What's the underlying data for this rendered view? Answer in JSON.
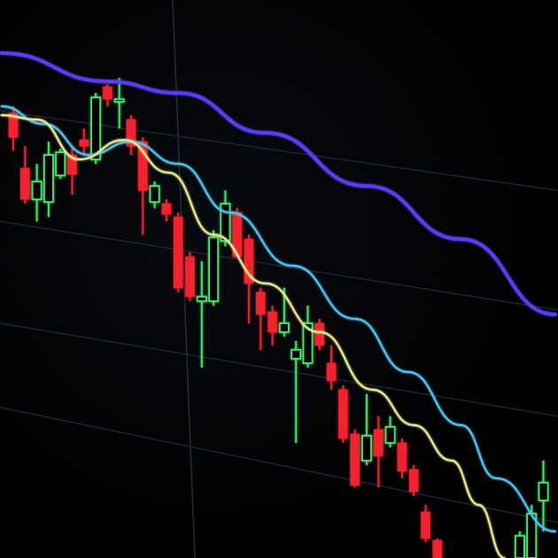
{
  "chart_data": {
    "type": "candlestick",
    "title": "",
    "xlabel": "",
    "ylabel": "",
    "grid": true,
    "xlim": [
      -1,
      46
    ],
    "ylim": [
      0,
      630
    ],
    "colors": {
      "up": "#3ee86a",
      "down": "#f2202e",
      "ma_slow": "#5a3cf0",
      "ma_mid": "#4fc3f0",
      "ma_fast": "#e8e890",
      "grid": "#1c2a36",
      "background": "#000000"
    },
    "candles": [
      {
        "t": 0,
        "open": 502,
        "high": 510,
        "low": 460,
        "close": 475
      },
      {
        "t": 1,
        "open": 440,
        "high": 465,
        "low": 400,
        "close": 405
      },
      {
        "t": 2,
        "open": 405,
        "high": 445,
        "low": 380,
        "close": 425
      },
      {
        "t": 3,
        "open": 402,
        "high": 470,
        "low": 385,
        "close": 455
      },
      {
        "t": 4,
        "open": 432,
        "high": 462,
        "low": 428,
        "close": 458
      },
      {
        "t": 5,
        "open": 455,
        "high": 465,
        "low": 410,
        "close": 433
      },
      {
        "t": 6,
        "open": 472,
        "high": 485,
        "low": 455,
        "close": 465
      },
      {
        "t": 7,
        "open": 450,
        "high": 525,
        "low": 445,
        "close": 520
      },
      {
        "t": 8,
        "open": 532,
        "high": 535,
        "low": 510,
        "close": 518
      },
      {
        "t": 9,
        "open": 515,
        "high": 542,
        "low": 485,
        "close": 518
      },
      {
        "t": 10,
        "open": 495,
        "high": 500,
        "low": 455,
        "close": 465
      },
      {
        "t": 11,
        "open": 470,
        "high": 475,
        "low": 365,
        "close": 415
      },
      {
        "t": 12,
        "open": 402,
        "high": 425,
        "low": 395,
        "close": 420
      },
      {
        "t": 13,
        "open": 400,
        "high": 405,
        "low": 380,
        "close": 388
      },
      {
        "t": 14,
        "open": 385,
        "high": 390,
        "low": 300,
        "close": 305
      },
      {
        "t": 15,
        "open": 340,
        "high": 345,
        "low": 290,
        "close": 295
      },
      {
        "t": 16,
        "open": 290,
        "high": 335,
        "low": 215,
        "close": 295
      },
      {
        "t": 17,
        "open": 290,
        "high": 370,
        "low": 285,
        "close": 362
      },
      {
        "t": 18,
        "open": 358,
        "high": 415,
        "low": 352,
        "close": 400
      },
      {
        "t": 19,
        "open": 390,
        "high": 395,
        "low": 340,
        "close": 340
      },
      {
        "t": 20,
        "open": 360,
        "high": 365,
        "low": 265,
        "close": 310
      },
      {
        "t": 21,
        "open": 300,
        "high": 305,
        "low": 235,
        "close": 275
      },
      {
        "t": 22,
        "open": 278,
        "high": 285,
        "low": 240,
        "close": 255
      },
      {
        "t": 23,
        "open": 255,
        "high": 305,
        "low": 250,
        "close": 265
      },
      {
        "t": 24,
        "open": 225,
        "high": 245,
        "low": 130,
        "close": 235
      },
      {
        "t": 25,
        "open": 220,
        "high": 285,
        "low": 215,
        "close": 265
      },
      {
        "t": 26,
        "open": 265,
        "high": 270,
        "low": 235,
        "close": 240
      },
      {
        "t": 27,
        "open": 220,
        "high": 240,
        "low": 190,
        "close": 200
      },
      {
        "t": 28,
        "open": 190,
        "high": 195,
        "low": 130,
        "close": 135
      },
      {
        "t": 29,
        "open": 140,
        "high": 145,
        "low": 80,
        "close": 82
      },
      {
        "t": 30,
        "open": 110,
        "high": 185,
        "low": 105,
        "close": 138
      },
      {
        "t": 31,
        "open": 145,
        "high": 160,
        "low": 80,
        "close": 115
      },
      {
        "t": 32,
        "open": 130,
        "high": 160,
        "low": 125,
        "close": 148
      },
      {
        "t": 33,
        "open": 130,
        "high": 135,
        "low": 90,
        "close": 98
      },
      {
        "t": 34,
        "open": 100,
        "high": 105,
        "low": 70,
        "close": 75
      },
      {
        "t": 35,
        "open": 52,
        "high": 60,
        "low": 18,
        "close": 22
      },
      {
        "t": 36,
        "open": 20,
        "high": 22,
        "low": 0,
        "close": 0
      },
      {
        "t": 43,
        "open": 0,
        "high": 30,
        "low": 0,
        "close": 25
      },
      {
        "t": 44,
        "open": 0,
        "high": 60,
        "low": 0,
        "close": 50
      },
      {
        "t": 45,
        "open": 65,
        "high": 110,
        "low": 30,
        "close": 85
      }
    ],
    "moving_averages": [
      {
        "key": "ma_slow",
        "points": [
          [
            -1,
            570
          ],
          [
            8,
            538
          ],
          [
            14,
            525
          ],
          [
            21.4,
            480
          ],
          [
            30,
            420
          ],
          [
            38,
            360
          ],
          [
            46,
            275
          ]
        ]
      },
      {
        "key": "ma_mid",
        "points": [
          [
            -1,
            510
          ],
          [
            2.6,
            490
          ],
          [
            6.4,
            455
          ],
          [
            10,
            470
          ],
          [
            14,
            445
          ],
          [
            18.4,
            390
          ],
          [
            23.7,
            330
          ],
          [
            29,
            270
          ],
          [
            33.5,
            210
          ],
          [
            38,
            150
          ],
          [
            41,
            90
          ],
          [
            46,
            30
          ]
        ]
      },
      {
        "key": "ma_fast",
        "points": [
          [
            -1,
            500
          ],
          [
            2,
            495
          ],
          [
            5.6,
            450
          ],
          [
            9.4,
            472
          ],
          [
            13.2,
            435
          ],
          [
            17,
            365
          ],
          [
            21.4,
            310
          ],
          [
            26,
            255
          ],
          [
            30.5,
            190
          ],
          [
            34,
            150
          ],
          [
            37.2,
            110
          ],
          [
            39.5,
            60
          ],
          [
            41.7,
            0
          ]
        ]
      }
    ]
  }
}
